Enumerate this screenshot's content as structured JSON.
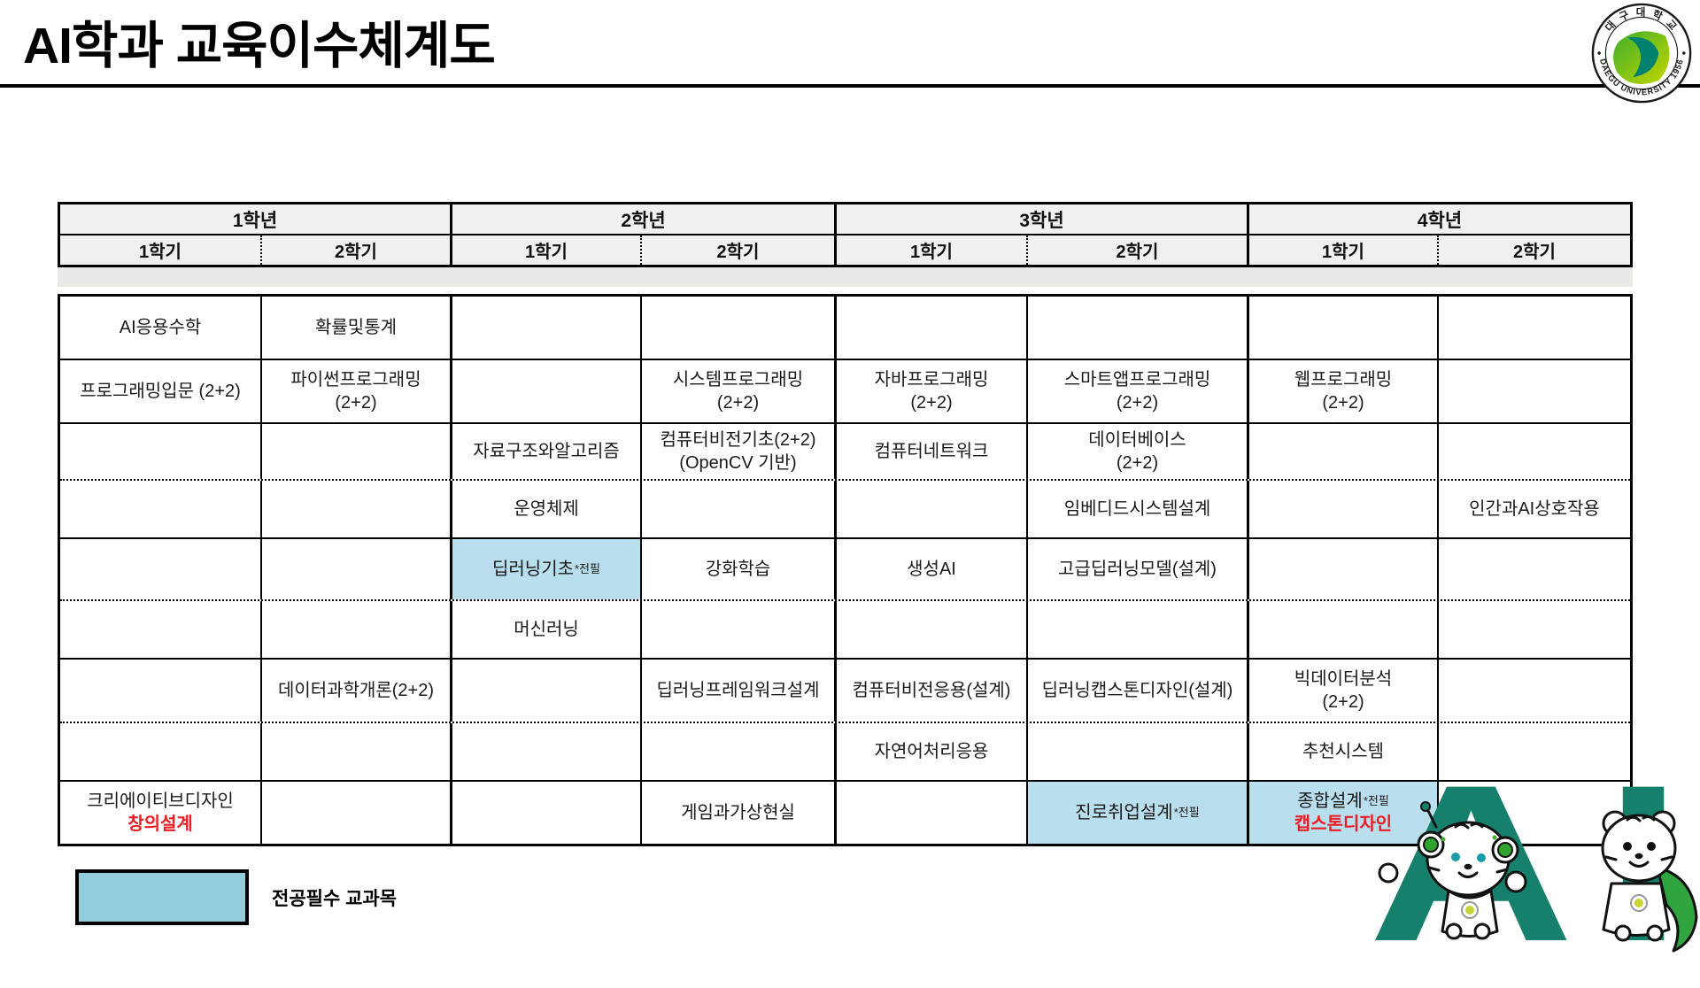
{
  "slide": {
    "title": "AI학과 교육이수체계도"
  },
  "logo": {
    "top_text": "대 구 대 학 교",
    "bottom_text": "DAEGU UNIVERSITY 1956"
  },
  "colors": {
    "highlight_cell": "#B9DEED",
    "legend_swatch": "#92CDDC",
    "required_red": "#EC1C24",
    "ai_teal": "#17806D",
    "header_grey": "#F1F0EE"
  },
  "table": {
    "years": [
      {
        "label": "1학년",
        "semesters": [
          "1학기",
          "2학기"
        ]
      },
      {
        "label": "2학년",
        "semesters": [
          "1학기",
          "2학기"
        ]
      },
      {
        "label": "3학년",
        "semesters": [
          "1학기",
          "2학기"
        ]
      },
      {
        "label": "4학년",
        "semesters": [
          "1학기",
          "2학기"
        ]
      }
    ],
    "rows": [
      {
        "cells": [
          {
            "lines": [
              {
                "t": "AI응용수학"
              }
            ]
          },
          {
            "lines": [
              {
                "t": "확률및통계"
              }
            ]
          },
          {},
          {},
          {},
          {},
          {},
          {}
        ]
      },
      {
        "cells": [
          {
            "lines": [
              {
                "t": "프로그래밍입문 (2+2)"
              }
            ]
          },
          {
            "lines": [
              {
                "t": "파이썬프로그래밍"
              },
              {
                "t": "(2+2)"
              }
            ]
          },
          {},
          {
            "lines": [
              {
                "t": "시스템프로그래밍"
              },
              {
                "t": "(2+2)"
              }
            ]
          },
          {
            "lines": [
              {
                "t": "자바프로그래밍"
              },
              {
                "t": "(2+2)"
              }
            ]
          },
          {
            "lines": [
              {
                "t": "스마트앱프로그래밍"
              },
              {
                "t": "(2+2)"
              }
            ]
          },
          {
            "lines": [
              {
                "t": "웹프로그래밍"
              },
              {
                "t": "(2+2)"
              }
            ]
          },
          {}
        ]
      },
      {
        "cells": [
          {},
          {},
          {
            "lines": [
              {
                "t": "자료구조와알고리즘"
              }
            ]
          },
          {
            "lines": [
              {
                "t": "컴퓨터비전기초(2+2)"
              },
              {
                "t": "(OpenCV 기반)"
              }
            ]
          },
          {
            "lines": [
              {
                "t": "컴퓨터네트워크"
              }
            ]
          },
          {
            "lines": [
              {
                "t": "데이터베이스"
              },
              {
                "t": "(2+2)"
              }
            ]
          },
          {},
          {}
        ]
      },
      {
        "cells": [
          {},
          {},
          {
            "lines": [
              {
                "t": "운영체제"
              }
            ]
          },
          {},
          {},
          {
            "lines": [
              {
                "t": "임베디드시스템설계"
              }
            ]
          },
          {},
          {
            "lines": [
              {
                "t": "인간과AI상호작용"
              }
            ]
          }
        ]
      },
      {
        "cells": [
          {},
          {},
          {
            "hl": true,
            "lines": [
              {
                "t": "딥러닝기초",
                "sup": "*전필"
              }
            ]
          },
          {
            "lines": [
              {
                "t": "강화학습"
              }
            ]
          },
          {
            "lines": [
              {
                "t": "생성AI"
              }
            ]
          },
          {
            "lines": [
              {
                "t": "고급딥러닝모델(설계)"
              }
            ]
          },
          {},
          {}
        ]
      },
      {
        "cells": [
          {},
          {},
          {
            "lines": [
              {
                "t": "머신러닝"
              }
            ]
          },
          {},
          {},
          {},
          {},
          {}
        ]
      },
      {
        "cells": [
          {},
          {
            "lines": [
              {
                "t": "데이터과학개론(2+2)"
              }
            ]
          },
          {},
          {
            "lines": [
              {
                "t": "딥러닝프레임워크설계"
              }
            ]
          },
          {
            "lines": [
              {
                "t": "컴퓨터비전응용(설계)"
              }
            ]
          },
          {
            "lines": [
              {
                "t": "딥러닝캡스톤디자인(설계)"
              }
            ]
          },
          {
            "lines": [
              {
                "t": "빅데이터분석"
              },
              {
                "t": "(2+2)"
              }
            ]
          },
          {}
        ]
      },
      {
        "cells": [
          {},
          {},
          {},
          {},
          {
            "lines": [
              {
                "t": "자연어처리응용"
              }
            ]
          },
          {},
          {
            "lines": [
              {
                "t": "추천시스템"
              }
            ]
          },
          {}
        ]
      },
      {
        "cells": [
          {
            "lines": [
              {
                "t": "크리에이티브디자인"
              },
              {
                "t": "창의설계",
                "red": true
              }
            ]
          },
          {},
          {},
          {
            "lines": [
              {
                "t": "게임과가상현실"
              }
            ]
          },
          {},
          {
            "hl": true,
            "lines": [
              {
                "t": "진로취업설계",
                "sup": "*전필"
              }
            ]
          },
          {
            "hl": true,
            "lines": [
              {
                "t": "종합설계",
                "sup": "*전필"
              },
              {
                "t": "캡스톤디자인",
                "red": true
              }
            ]
          },
          {}
        ]
      }
    ]
  },
  "legend": {
    "label": "전공필수 교과목"
  },
  "mascot": {
    "letters": "AI"
  }
}
